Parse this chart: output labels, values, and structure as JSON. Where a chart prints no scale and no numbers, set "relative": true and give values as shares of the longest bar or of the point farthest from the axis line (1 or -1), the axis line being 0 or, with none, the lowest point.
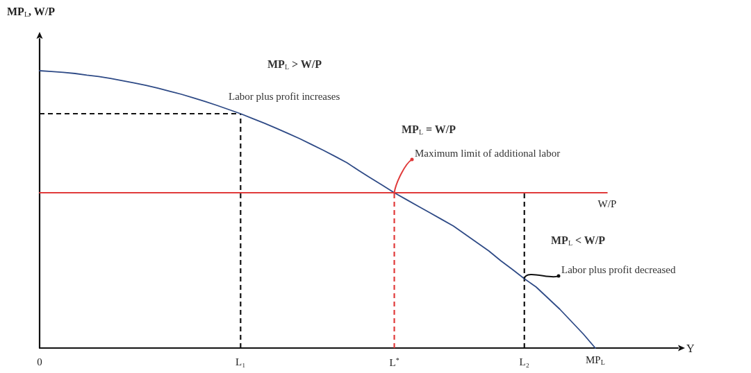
{
  "chart_data": {
    "type": "line",
    "relative": true,
    "ylabel": "MP$_{L}$, W/P",
    "xlabel": "Y",
    "categories": [
      "0",
      null,
      null,
      null,
      null,
      null,
      null,
      null,
      null,
      null,
      null,
      null,
      null,
      null,
      null,
      null,
      null,
      "L₁",
      null,
      null,
      null,
      null,
      null,
      null,
      null,
      null,
      null,
      null,
      null,
      null,
      "L$^{*}$",
      null,
      null,
      null,
      null,
      null,
      null,
      null,
      null,
      null,
      null,
      "L₂",
      null,
      null,
      null,
      null,
      null,
      null,
      null,
      null,
      null,
      null,
      null,
      null,
      null
    ],
    "series": [
      {
        "name": "MP$_{L}$",
        "color": "#2e4a86",
        "values": [
          1,
          0.997,
          0.994,
          0.99,
          0.984,
          0.979,
          0.972,
          0.964,
          0.956,
          0.947,
          0.937,
          0.926,
          0.915,
          0.902,
          0.889,
          0.875,
          0.86,
          0.845,
          0.828,
          0.811,
          0.793,
          0.774,
          0.755,
          0.734,
          0.713,
          0.691,
          0.668,
          0.64,
          0.613,
          0.587,
          0.56,
          0.536,
          0.512,
          0.488,
          0.464,
          0.44,
          0.41,
          0.38,
          0.35,
          0.315,
          0.283,
          0.25,
          0.22,
          0.18,
          0.14,
          0.095,
          0.05,
          0,
          null,
          null,
          null,
          null,
          null,
          null,
          null
        ]
      },
      {
        "name": "W/P",
        "color": "#e03a3a",
        "values": [
          0.56,
          0.56,
          0.56,
          0.56,
          0.56,
          0.56,
          0.56,
          0.56,
          0.56,
          0.56,
          0.56,
          0.56,
          0.56,
          0.56,
          0.56,
          0.56,
          0.56,
          0.56,
          0.56,
          0.56,
          0.56,
          0.56,
          0.56,
          0.56,
          0.56,
          0.56,
          0.56,
          0.56,
          0.56,
          0.56,
          0.56,
          0.56,
          0.56,
          0.56,
          0.56,
          0.56,
          0.56,
          0.56,
          0.56,
          0.56,
          0.56,
          0.56,
          0.56,
          0.56,
          0.56,
          0.56,
          0.56,
          0.56,
          0.56,
          null,
          null,
          null,
          null,
          null,
          null
        ]
      }
    ],
    "ref_lines": [
      {
        "axis": "x",
        "value": "L₁",
        "color": "#111111",
        "line_style": "dashed"
      },
      {
        "axis": "x",
        "value": "L$^{*}$",
        "color": "#e03a3a",
        "line_style": "dashed"
      },
      {
        "axis": "x",
        "value": "L₂",
        "color": "#111111",
        "line_style": "dashed"
      },
      {
        "axis": "y",
        "value": 0.845,
        "color": "#111111",
        "line_style": "dashed"
      }
    ],
    "annotations": [
      "MP$_{L}$ > W/P",
      "Labor plus profit increases",
      "MP$_{L}$ = W/P",
      {
        "text": "Maximum limit of additional labor",
        "x": "L$^{*}$",
        "y": 0.56
      },
      "MP$_{L}$ < W/P",
      {
        "text": "Labor plus profit decreased",
        "x": "L₂",
        "y": 0.25
      }
    ],
    "marker": "none"
  }
}
